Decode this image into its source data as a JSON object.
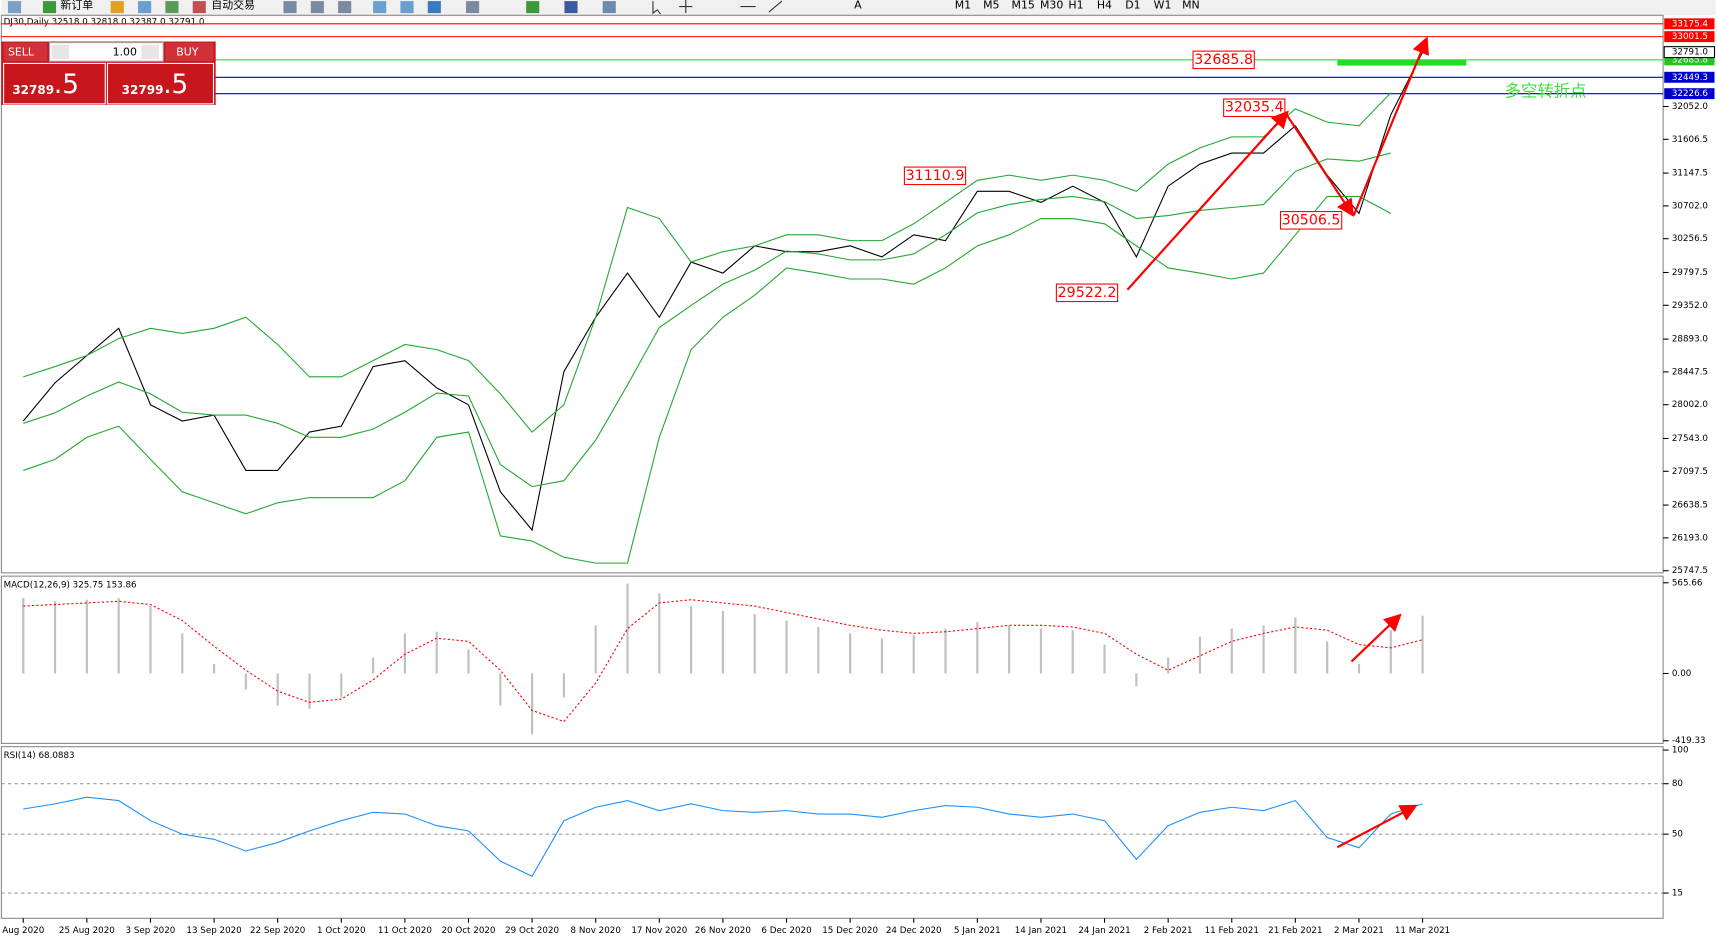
{
  "toolbar": {
    "new_order": "新订单",
    "auto_trading": "自动交易",
    "text_tool": "A",
    "timeframes": [
      "M1",
      "M5",
      "M15",
      "M30",
      "H1",
      "H4",
      "D1",
      "W1",
      "MN"
    ]
  },
  "order_panel": {
    "sell": "SELL",
    "buy": "BUY",
    "volume": "1.00",
    "sell_price_main": "32789",
    "sell_price_pips": ".5",
    "buy_price_main": "32799",
    "buy_price_pips": ".5"
  },
  "chart_data": [
    {
      "type": "line",
      "title": "DJ30,Daily  32518.0 32818.0 32387.0 32791.0",
      "categories": [
        "Aug 2020",
        null,
        "25 Aug 2020",
        null,
        "3 Sep 2020",
        null,
        "13 Sep 2020",
        null,
        "22 Sep 2020",
        null,
        "1 Oct 2020",
        null,
        "11 Oct 2020",
        null,
        "20 Oct 2020",
        null,
        "29 Oct 2020",
        null,
        "8 Nov 2020",
        null,
        "17 Nov 2020",
        null,
        "26 Nov 2020",
        null,
        "6 Dec 2020",
        null,
        "15 Dec 2020",
        null,
        "24 Dec 2020",
        null,
        "5 Jan 2021",
        null,
        "14 Jan 2021",
        null,
        "24 Jan 2021",
        null,
        "2 Feb 2021",
        null,
        "11 Feb 2021",
        null,
        "21 Feb 2021",
        null,
        "2 Mar 2021",
        null,
        "11 Mar 2021"
      ],
      "series": [
        {
          "color": "#000000",
          "values": [
            27780,
            28300,
            28670,
            29040,
            28000,
            27780,
            27860,
            27110,
            27110,
            27630,
            27710,
            28520,
            28600,
            28230,
            28000,
            26820,
            26300,
            28450,
            29190,
            29790,
            29190,
            29940,
            29790,
            30160,
            30080,
            30080,
            30160,
            30010,
            30310,
            30230,
            30900,
            30900,
            30750,
            30970,
            30750,
            30010,
            30970,
            31270,
            31420,
            31420,
            31790,
            31120,
            30600,
            31940,
            32791
          ]
        },
        {
          "color": "#22a832",
          "values": [
            28380,
            28520,
            28670,
            28900,
            29040,
            28970,
            29040,
            29190,
            28820,
            28380,
            28380,
            28600,
            28820,
            28750,
            28600,
            28150,
            27630,
            28000,
            29190,
            30680,
            30530,
            29940,
            30080,
            30160,
            30310,
            30310,
            30230,
            30230,
            30460,
            30750,
            31050,
            31120,
            31050,
            31120,
            31050,
            30900,
            31270,
            31490,
            31640,
            31640,
            32020,
            31840,
            31790,
            32240,
            null
          ]
        },
        {
          "color": "#22a832",
          "values": [
            27750,
            27890,
            28120,
            28310,
            28150,
            27900,
            27860,
            27860,
            27750,
            27560,
            27560,
            27670,
            27900,
            28160,
            28120,
            27190,
            26890,
            26970,
            27520,
            28270,
            29050,
            29350,
            29640,
            29830,
            30090,
            30050,
            29970,
            29970,
            30050,
            30310,
            30610,
            30720,
            30790,
            30830,
            30760,
            30530,
            30570,
            30640,
            30680,
            30720,
            31170,
            31340,
            31310,
            31420,
            null
          ]
        },
        {
          "color": "#22a832",
          "values": [
            27110,
            27260,
            27560,
            27710,
            27260,
            26820,
            26670,
            26520,
            26670,
            26740,
            26740,
            26740,
            26970,
            27560,
            27630,
            26220,
            26150,
            25930,
            25850,
            25850,
            27560,
            28750,
            29190,
            29490,
            29860,
            29790,
            29710,
            29710,
            29640,
            29860,
            30160,
            30310,
            30530,
            30530,
            30460,
            30160,
            29860,
            29790,
            29710,
            29790,
            30310,
            30830,
            30830,
            30600,
            null
          ]
        }
      ],
      "ylim": [
        25718,
        33291
      ],
      "yticks": [
        {
          "value": 32052.0,
          "label": "32052.0"
        },
        {
          "value": 31606.5,
          "label": "31606.5"
        },
        {
          "value": 31147.5,
          "label": "31147.5"
        },
        {
          "value": 30702.0,
          "label": "30702.0"
        },
        {
          "value": 30256.5,
          "label": "30256.5"
        },
        {
          "value": 29797.5,
          "label": "29797.5"
        },
        {
          "value": 29352.0,
          "label": "29352.0"
        },
        {
          "value": 28893.0,
          "label": "28893.0"
        },
        {
          "value": 28447.5,
          "label": "28447.5"
        },
        {
          "value": 28002.0,
          "label": "28002.0"
        },
        {
          "value": 27543.0,
          "label": "27543.0"
        },
        {
          "value": 27097.5,
          "label": "27097.5"
        },
        {
          "value": 26638.5,
          "label": "26638.5"
        },
        {
          "value": 26193.0,
          "label": "26193.0"
        },
        {
          "value": 25747.5,
          "label": "25747.5"
        }
      ],
      "levels": [
        {
          "value": 33175.4,
          "label": "33175.4",
          "color": "#ff0000"
        },
        {
          "value": 33001.5,
          "label": "33001.5",
          "color": "#ff0000"
        },
        {
          "value": 32685.8,
          "label": "32685.8",
          "color": "#22c522"
        },
        {
          "value": 32449.3,
          "label": "32449.3",
          "color": "#0000cc"
        },
        {
          "value": 32226.6,
          "label": "32226.6",
          "color": "#0000cc"
        }
      ],
      "current_price": {
        "value": 32791.0,
        "label": "32791.0"
      },
      "annotations": [
        {
          "value": 32685.8,
          "label": "32685.8"
        },
        {
          "value": 31110.9,
          "label": "31110.9"
        },
        {
          "value": 32035.4,
          "label": "32035.4"
        },
        {
          "value": 30506.5,
          "label": "30506.5"
        },
        {
          "value": 29522.2,
          "label": "29522.2"
        }
      ],
      "note": "多空转折点"
    },
    {
      "type": "macd",
      "title": "MACD(12,26,9) 325.75 153.86",
      "series": [
        {
          "type": "bar",
          "color": "#c0c0c0",
          "values": [
            470,
            450,
            460,
            470,
            420,
            250,
            60,
            -100,
            -200,
            -220,
            -150,
            100,
            250,
            260,
            150,
            -200,
            -380,
            -150,
            300,
            560,
            500,
            420,
            390,
            370,
            330,
            290,
            250,
            220,
            240,
            280,
            320,
            300,
            280,
            270,
            180,
            -80,
            100,
            230,
            280,
            300,
            350,
            200,
            60,
            270,
            360
          ]
        },
        {
          "type": "line",
          "color": "#ff0000",
          "dashed": true,
          "values": [
            420,
            430,
            440,
            450,
            430,
            330,
            170,
            20,
            -110,
            -180,
            -160,
            -40,
            120,
            220,
            200,
            20,
            -230,
            -300,
            -60,
            280,
            440,
            460,
            440,
            420,
            380,
            340,
            300,
            270,
            250,
            260,
            280,
            300,
            300,
            290,
            250,
            120,
            20,
            110,
            200,
            250,
            290,
            270,
            180,
            160,
            210
          ]
        }
      ],
      "ylim": [
        -436,
        607
      ],
      "yticks": [
        {
          "value": 565.66,
          "label": "565.66"
        },
        {
          "value": 0,
          "label": "0.00"
        },
        {
          "value": -419.33,
          "label": "-419.33"
        }
      ]
    },
    {
      "type": "line",
      "title": "RSI(14) 68.0883",
      "series": [
        {
          "color": "#1e90ff",
          "values": [
            65,
            68,
            72,
            70,
            58,
            50,
            47,
            40,
            45,
            52,
            58,
            63,
            62,
            55,
            52,
            34,
            25,
            58,
            66,
            70,
            64,
            68,
            64,
            63,
            64,
            62,
            62,
            60,
            64,
            67,
            66,
            62,
            60,
            62,
            58,
            35,
            55,
            63,
            66,
            64,
            70,
            48,
            42,
            62,
            68
          ]
        }
      ],
      "ylim": [
        0,
        102
      ],
      "yticks": [
        100,
        80,
        50,
        15
      ],
      "levels": [
        80,
        50,
        15
      ]
    }
  ]
}
